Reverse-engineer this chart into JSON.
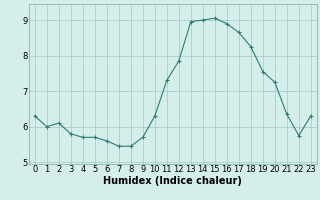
{
  "x": [
    0,
    1,
    2,
    3,
    4,
    5,
    6,
    7,
    8,
    9,
    10,
    11,
    12,
    13,
    14,
    15,
    16,
    17,
    18,
    19,
    20,
    21,
    22,
    23
  ],
  "y": [
    6.3,
    6.0,
    6.1,
    5.8,
    5.7,
    5.7,
    5.6,
    5.45,
    5.45,
    5.7,
    6.3,
    7.3,
    7.85,
    8.95,
    9.0,
    9.05,
    8.9,
    8.65,
    8.25,
    7.55,
    7.25,
    6.35,
    5.75,
    6.3
  ],
  "line_color": "#2e7d6e",
  "marker": "+",
  "marker_size": 3,
  "bg_color": "#d4eeec",
  "grid_color": "#a0c8c4",
  "xlabel": "Humidex (Indice chaleur)",
  "xlim": [
    -0.5,
    23.5
  ],
  "ylim": [
    4.95,
    9.45
  ],
  "yticks": [
    5,
    6,
    7,
    8,
    9
  ],
  "xticks": [
    0,
    1,
    2,
    3,
    4,
    5,
    6,
    7,
    8,
    9,
    10,
    11,
    12,
    13,
    14,
    15,
    16,
    17,
    18,
    19,
    20,
    21,
    22,
    23
  ],
  "xlabel_fontsize": 7,
  "tick_fontsize": 6,
  "spine_color": "#7aaa9a"
}
